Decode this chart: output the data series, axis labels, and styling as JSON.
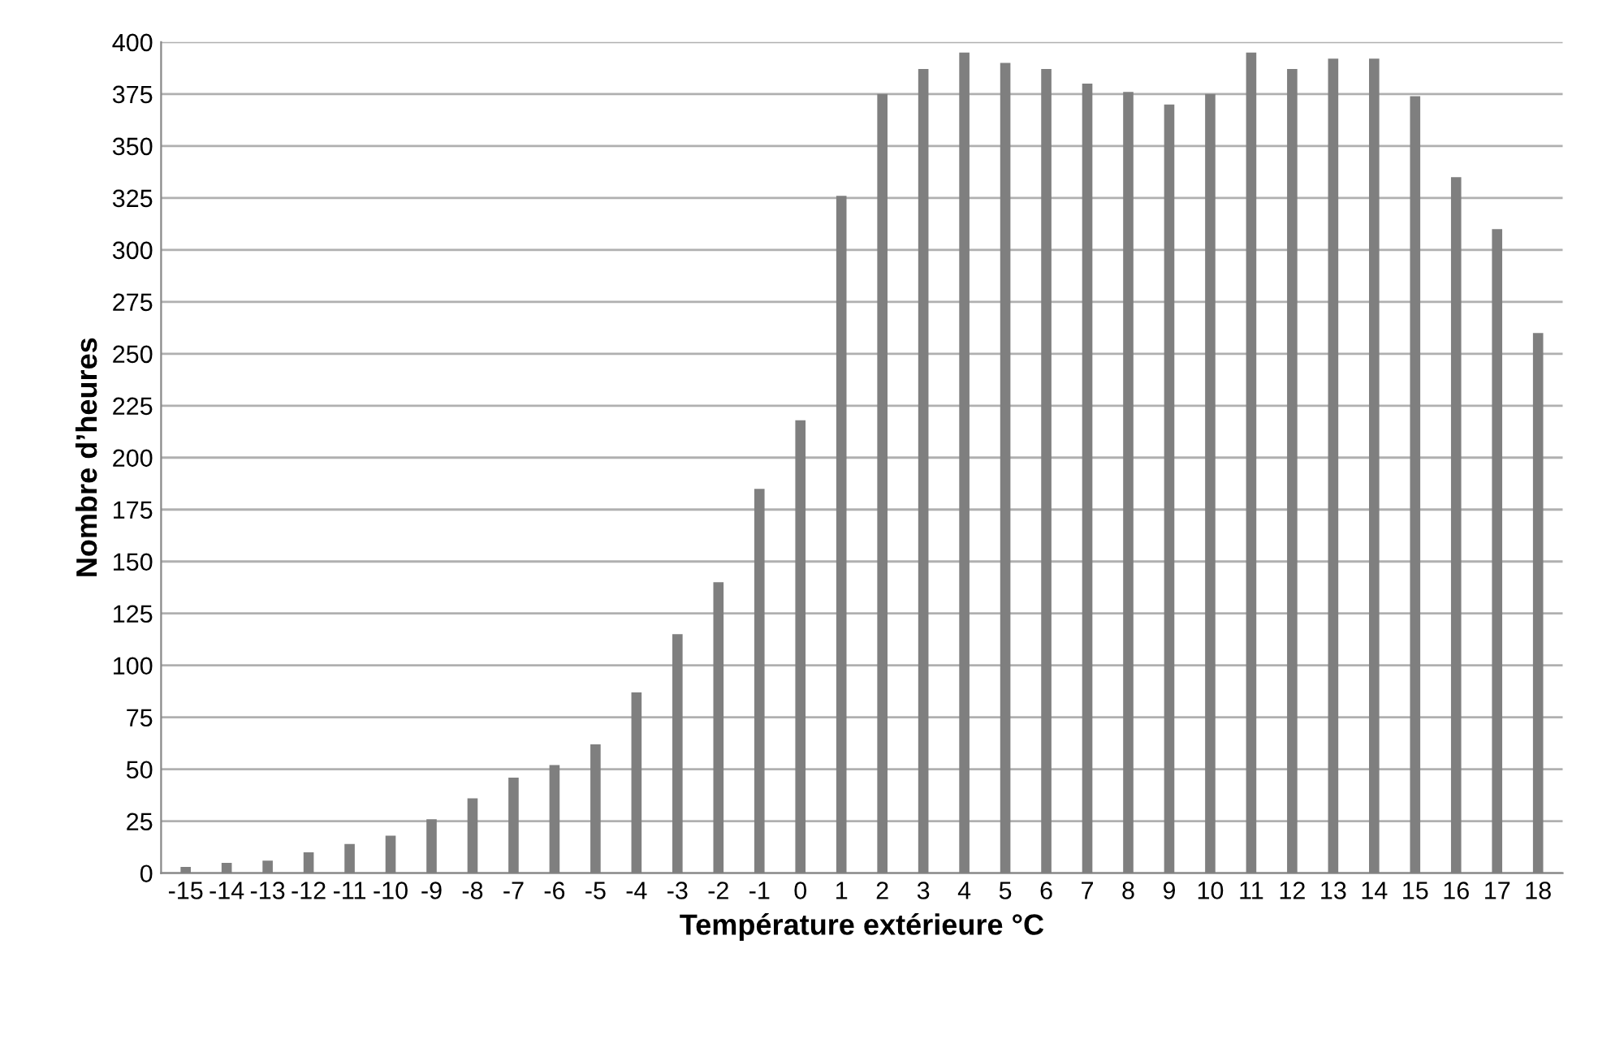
{
  "chart_data": {
    "type": "bar",
    "xlabel": "Température extérieure °C",
    "ylabel": "Nombre d’heures",
    "categories": [
      "-15",
      "-14",
      "-13",
      "-12",
      "-11",
      "-10",
      "-9",
      "-8",
      "-7",
      "-6",
      "-5",
      "-4",
      "-3",
      "-2",
      "-1",
      "0",
      "1",
      "2",
      "3",
      "4",
      "5",
      "6",
      "7",
      "8",
      "9",
      "10",
      "11",
      "12",
      "13",
      "14",
      "15",
      "16",
      "17",
      "18"
    ],
    "values": [
      3,
      5,
      6,
      10,
      14,
      18,
      26,
      36,
      46,
      52,
      62,
      87,
      115,
      140,
      185,
      218,
      326,
      375,
      387,
      395,
      390,
      387,
      380,
      376,
      370,
      375,
      395,
      387,
      392,
      392,
      374,
      335,
      310,
      260
    ],
    "color": "#7f7f7f",
    "ylim": [
      0,
      400
    ],
    "yticks": [
      0,
      25,
      50,
      75,
      100,
      125,
      150,
      175,
      200,
      225,
      250,
      275,
      300,
      325,
      350,
      375,
      400
    ],
    "grid": "y",
    "legend": false
  }
}
